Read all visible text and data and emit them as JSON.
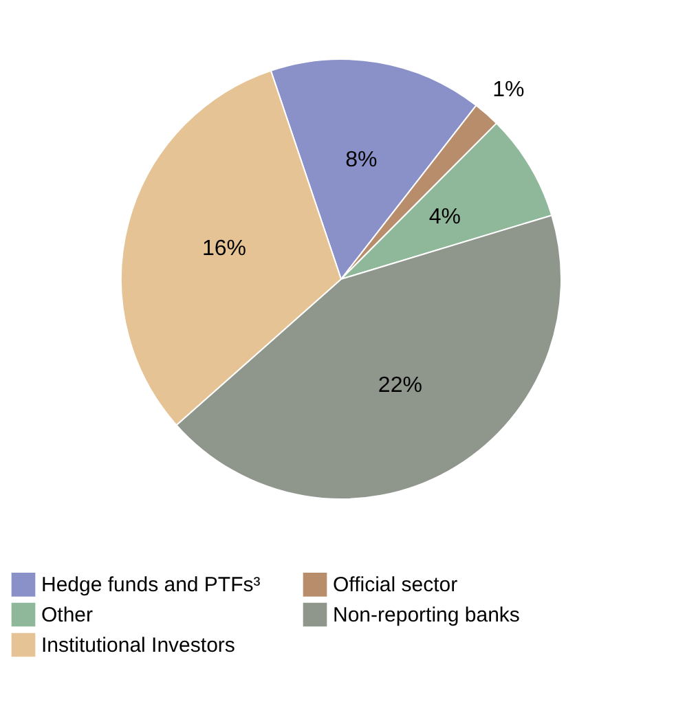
{
  "chart_data": {
    "type": "pie",
    "categories": [
      "Hedge funds and PTFs³",
      "Official sector",
      "Other",
      "Non-reporting banks",
      "Institutional Investors"
    ],
    "values": [
      8,
      1,
      4,
      22,
      16
    ],
    "colors": [
      "#8a90c8",
      "#b88d6c",
      "#8fb89a",
      "#8f968c",
      "#e5c394"
    ],
    "value_labels": [
      "8%",
      "1%",
      "4%",
      "22%",
      "16%"
    ],
    "legend": "bottom"
  }
}
